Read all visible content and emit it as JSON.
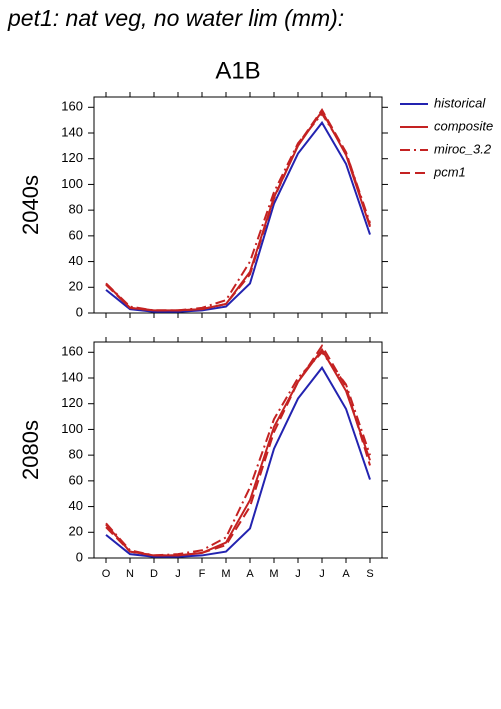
{
  "chart_data": [
    {
      "type": "line",
      "title": "pet1: nat veg, no water lim (mm):",
      "subtitle": "A1B",
      "ylabel": "2040s",
      "ylim": [
        0,
        168
      ],
      "yticks": [
        0,
        20,
        40,
        60,
        80,
        100,
        120,
        140,
        160
      ],
      "series": [
        {
          "name": "historical",
          "color": "#2323b0",
          "style": "solid",
          "values": [
            18,
            3,
            1,
            1,
            2,
            5,
            23,
            85,
            124,
            148,
            116,
            61
          ]
        },
        {
          "name": "composite",
          "color": "#c42222",
          "style": "solid",
          "values": [
            23,
            4,
            2,
            2,
            3,
            7,
            32,
            90,
            130,
            157,
            123,
            67
          ]
        },
        {
          "name": "miroc_3.2",
          "color": "#c42222",
          "style": "dashdot",
          "values": [
            23,
            5,
            2,
            2,
            4,
            10,
            40,
            94,
            132,
            155,
            125,
            70
          ]
        },
        {
          "name": "pcm1",
          "color": "#c42222",
          "style": "dashed",
          "values": [
            22,
            4,
            2,
            2,
            3,
            7,
            30,
            89,
            131,
            158,
            125,
            68
          ]
        }
      ]
    },
    {
      "type": "line",
      "ylabel": "2080s",
      "categories": [
        "O",
        "N",
        "D",
        "J",
        "F",
        "M",
        "A",
        "M",
        "J",
        "J",
        "A",
        "S"
      ],
      "ylim": [
        0,
        168
      ],
      "yticks": [
        0,
        20,
        40,
        60,
        80,
        100,
        120,
        140,
        160
      ],
      "series": [
        {
          "color": "#2323b0",
          "style": "solid",
          "values": [
            18,
            3,
            1,
            1,
            2,
            5,
            23,
            85,
            124,
            148,
            116,
            61
          ]
        },
        {
          "color": "#c42222",
          "style": "solid",
          "values": [
            26,
            5,
            2,
            2,
            4,
            12,
            45,
            102,
            137,
            162,
            130,
            76
          ]
        },
        {
          "color": "#c42222",
          "style": "dashdot",
          "values": [
            27,
            6,
            2,
            3,
            6,
            16,
            55,
            108,
            140,
            160,
            135,
            80
          ]
        },
        {
          "color": "#c42222",
          "style": "dashed",
          "values": [
            24,
            5,
            2,
            2,
            4,
            10,
            40,
            98,
            137,
            165,
            133,
            72
          ]
        }
      ]
    }
  ]
}
